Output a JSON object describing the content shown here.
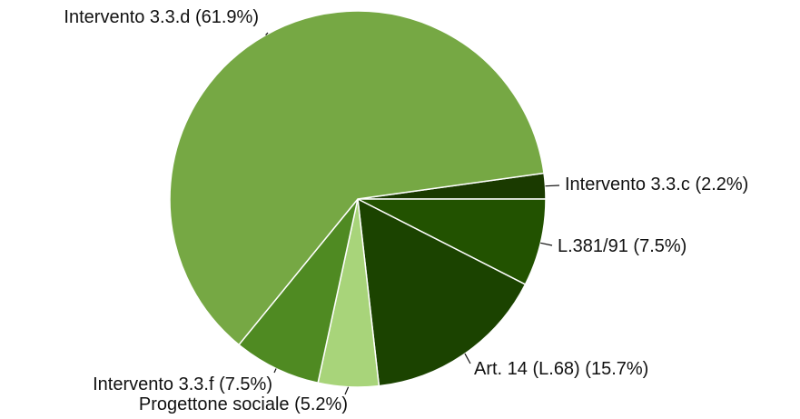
{
  "chart_data": {
    "type": "pie",
    "categories": [
      "Intervento 3.3.c",
      "L.381/91",
      "Art. 14 (L.68)",
      "Progettone sociale",
      "Intervento 3.3.f",
      "Intervento 3.3.d"
    ],
    "values": [
      2.2,
      7.5,
      15.7,
      5.2,
      7.5,
      61.9
    ],
    "value_labels": [
      "(2.2%)",
      "(7.5%)",
      "(15.7%)",
      "(5.2%)",
      "(7.5%)",
      "(61.9%)"
    ],
    "colors": [
      "#1a3a00",
      "#225200",
      "#1b4300",
      "#a8d47a",
      "#4f8a22",
      "#76a844"
    ]
  }
}
